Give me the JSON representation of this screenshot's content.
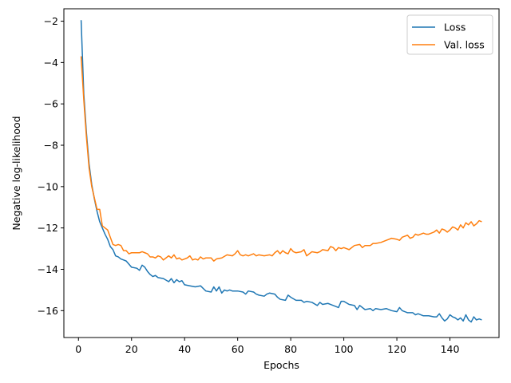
{
  "chart_data": {
    "type": "line",
    "title": "",
    "xlabel": "Epochs",
    "ylabel": "Negative log-likelihood",
    "xlim": [
      -5.5,
      158.5
    ],
    "ylim": [
      -17.3,
      -1.4
    ],
    "xticks": [
      0,
      20,
      40,
      60,
      80,
      100,
      120,
      140
    ],
    "yticks": [
      -16,
      -14,
      -12,
      -10,
      -8,
      -6,
      -4,
      -2
    ],
    "grid": false,
    "legend": "top-right",
    "series": [
      {
        "name": "Loss",
        "color": "#1f77b4",
        "points": [
          [
            1,
            -1.95
          ],
          [
            2,
            -5.5
          ],
          [
            3,
            -7.4
          ],
          [
            4,
            -8.9
          ],
          [
            5,
            -9.9
          ],
          [
            6,
            -10.6
          ],
          [
            7,
            -11.2
          ],
          [
            8,
            -11.7
          ],
          [
            9,
            -12.0
          ],
          [
            10,
            -12.3
          ],
          [
            11,
            -12.55
          ],
          [
            12,
            -12.9
          ],
          [
            13,
            -13.05
          ],
          [
            14,
            -13.35
          ],
          [
            15,
            -13.4
          ],
          [
            16,
            -13.5
          ],
          [
            17,
            -13.55
          ],
          [
            18,
            -13.6
          ],
          [
            19,
            -13.75
          ],
          [
            20,
            -13.9
          ],
          [
            22,
            -13.95
          ],
          [
            23,
            -14.05
          ],
          [
            24,
            -13.8
          ],
          [
            25,
            -13.9
          ],
          [
            26,
            -14.1
          ],
          [
            27,
            -14.25
          ],
          [
            28,
            -14.35
          ],
          [
            29,
            -14.3
          ],
          [
            30,
            -14.4
          ],
          [
            32,
            -14.45
          ],
          [
            34,
            -14.6
          ],
          [
            35,
            -14.45
          ],
          [
            36,
            -14.65
          ],
          [
            37,
            -14.5
          ],
          [
            38,
            -14.6
          ],
          [
            39,
            -14.55
          ],
          [
            40,
            -14.75
          ],
          [
            42,
            -14.8
          ],
          [
            44,
            -14.85
          ],
          [
            46,
            -14.8
          ],
          [
            48,
            -15.05
          ],
          [
            50,
            -15.1
          ],
          [
            51,
            -14.85
          ],
          [
            52,
            -15.05
          ],
          [
            53,
            -14.85
          ],
          [
            54,
            -15.15
          ],
          [
            55,
            -15.0
          ],
          [
            56,
            -15.05
          ],
          [
            57,
            -15.0
          ],
          [
            58,
            -15.05
          ],
          [
            60,
            -15.05
          ],
          [
            62,
            -15.1
          ],
          [
            63,
            -15.2
          ],
          [
            64,
            -15.05
          ],
          [
            66,
            -15.1
          ],
          [
            67,
            -15.2
          ],
          [
            68,
            -15.25
          ],
          [
            70,
            -15.3
          ],
          [
            71,
            -15.2
          ],
          [
            72,
            -15.15
          ],
          [
            74,
            -15.2
          ],
          [
            75,
            -15.35
          ],
          [
            76,
            -15.45
          ],
          [
            78,
            -15.5
          ],
          [
            79,
            -15.25
          ],
          [
            80,
            -15.35
          ],
          [
            82,
            -15.5
          ],
          [
            84,
            -15.5
          ],
          [
            85,
            -15.6
          ],
          [
            86,
            -15.55
          ],
          [
            88,
            -15.6
          ],
          [
            90,
            -15.75
          ],
          [
            91,
            -15.6
          ],
          [
            92,
            -15.7
          ],
          [
            94,
            -15.65
          ],
          [
            96,
            -15.75
          ],
          [
            98,
            -15.85
          ],
          [
            99,
            -15.55
          ],
          [
            100,
            -15.55
          ],
          [
            102,
            -15.7
          ],
          [
            104,
            -15.75
          ],
          [
            105,
            -15.95
          ],
          [
            106,
            -15.75
          ],
          [
            108,
            -15.95
          ],
          [
            110,
            -15.9
          ],
          [
            111,
            -16.0
          ],
          [
            112,
            -15.9
          ],
          [
            114,
            -15.95
          ],
          [
            116,
            -15.9
          ],
          [
            118,
            -16.0
          ],
          [
            120,
            -16.05
          ],
          [
            121,
            -15.85
          ],
          [
            122,
            -16.0
          ],
          [
            124,
            -16.1
          ],
          [
            126,
            -16.1
          ],
          [
            127,
            -16.2
          ],
          [
            128,
            -16.15
          ],
          [
            130,
            -16.25
          ],
          [
            132,
            -16.25
          ],
          [
            134,
            -16.3
          ],
          [
            135,
            -16.3
          ],
          [
            136,
            -16.15
          ],
          [
            137,
            -16.35
          ],
          [
            138,
            -16.5
          ],
          [
            139,
            -16.4
          ],
          [
            140,
            -16.2
          ],
          [
            141,
            -16.3
          ],
          [
            142,
            -16.35
          ],
          [
            143,
            -16.45
          ],
          [
            144,
            -16.35
          ],
          [
            145,
            -16.5
          ],
          [
            146,
            -16.2
          ],
          [
            147,
            -16.45
          ],
          [
            148,
            -16.55
          ],
          [
            149,
            -16.3
          ],
          [
            150,
            -16.45
          ],
          [
            151,
            -16.4
          ],
          [
            152,
            -16.45
          ]
        ]
      },
      {
        "name": "Val. loss",
        "color": "#ff7f0e",
        "points": [
          [
            1,
            -3.7
          ],
          [
            2,
            -5.8
          ],
          [
            3,
            -7.6
          ],
          [
            4,
            -9.1
          ],
          [
            5,
            -10.0
          ],
          [
            6,
            -10.55
          ],
          [
            7,
            -11.1
          ],
          [
            8,
            -11.1
          ],
          [
            9,
            -11.9
          ],
          [
            10,
            -12.0
          ],
          [
            11,
            -12.1
          ],
          [
            12,
            -12.45
          ],
          [
            13,
            -12.8
          ],
          [
            14,
            -12.85
          ],
          [
            15,
            -12.8
          ],
          [
            16,
            -12.85
          ],
          [
            17,
            -13.1
          ],
          [
            18,
            -13.1
          ],
          [
            19,
            -13.25
          ],
          [
            20,
            -13.2
          ],
          [
            22,
            -13.2
          ],
          [
            23,
            -13.2
          ],
          [
            24,
            -13.15
          ],
          [
            25,
            -13.2
          ],
          [
            26,
            -13.25
          ],
          [
            27,
            -13.4
          ],
          [
            28,
            -13.4
          ],
          [
            29,
            -13.45
          ],
          [
            30,
            -13.35
          ],
          [
            31,
            -13.4
          ],
          [
            32,
            -13.55
          ],
          [
            33,
            -13.45
          ],
          [
            34,
            -13.35
          ],
          [
            35,
            -13.45
          ],
          [
            36,
            -13.3
          ],
          [
            37,
            -13.5
          ],
          [
            38,
            -13.45
          ],
          [
            39,
            -13.55
          ],
          [
            40,
            -13.5
          ],
          [
            41,
            -13.45
          ],
          [
            42,
            -13.35
          ],
          [
            43,
            -13.55
          ],
          [
            44,
            -13.5
          ],
          [
            45,
            -13.55
          ],
          [
            46,
            -13.4
          ],
          [
            47,
            -13.5
          ],
          [
            48,
            -13.45
          ],
          [
            50,
            -13.45
          ],
          [
            51,
            -13.6
          ],
          [
            52,
            -13.5
          ],
          [
            54,
            -13.45
          ],
          [
            56,
            -13.3
          ],
          [
            58,
            -13.35
          ],
          [
            59,
            -13.25
          ],
          [
            60,
            -13.1
          ],
          [
            61,
            -13.3
          ],
          [
            62,
            -13.35
          ],
          [
            63,
            -13.3
          ],
          [
            64,
            -13.35
          ],
          [
            65,
            -13.3
          ],
          [
            66,
            -13.25
          ],
          [
            67,
            -13.35
          ],
          [
            68,
            -13.3
          ],
          [
            70,
            -13.35
          ],
          [
            72,
            -13.3
          ],
          [
            73,
            -13.35
          ],
          [
            74,
            -13.2
          ],
          [
            75,
            -13.1
          ],
          [
            76,
            -13.25
          ],
          [
            77,
            -13.1
          ],
          [
            78,
            -13.2
          ],
          [
            79,
            -13.25
          ],
          [
            80,
            -13.0
          ],
          [
            81,
            -13.15
          ],
          [
            82,
            -13.2
          ],
          [
            84,
            -13.15
          ],
          [
            85,
            -13.05
          ],
          [
            86,
            -13.35
          ],
          [
            88,
            -13.15
          ],
          [
            90,
            -13.2
          ],
          [
            91,
            -13.15
          ],
          [
            92,
            -13.05
          ],
          [
            94,
            -13.1
          ],
          [
            95,
            -12.9
          ],
          [
            96,
            -12.95
          ],
          [
            97,
            -13.1
          ],
          [
            98,
            -12.95
          ],
          [
            99,
            -13.0
          ],
          [
            100,
            -12.95
          ],
          [
            101,
            -13.0
          ],
          [
            102,
            -13.05
          ],
          [
            104,
            -12.85
          ],
          [
            106,
            -12.8
          ],
          [
            107,
            -12.95
          ],
          [
            108,
            -12.85
          ],
          [
            110,
            -12.85
          ],
          [
            111,
            -12.75
          ],
          [
            112,
            -12.75
          ],
          [
            114,
            -12.7
          ],
          [
            116,
            -12.6
          ],
          [
            117,
            -12.55
          ],
          [
            118,
            -12.5
          ],
          [
            120,
            -12.55
          ],
          [
            121,
            -12.6
          ],
          [
            122,
            -12.45
          ],
          [
            124,
            -12.35
          ],
          [
            125,
            -12.5
          ],
          [
            126,
            -12.45
          ],
          [
            127,
            -12.3
          ],
          [
            128,
            -12.35
          ],
          [
            130,
            -12.25
          ],
          [
            131,
            -12.3
          ],
          [
            132,
            -12.3
          ],
          [
            134,
            -12.2
          ],
          [
            135,
            -12.1
          ],
          [
            136,
            -12.25
          ],
          [
            137,
            -12.05
          ],
          [
            138,
            -12.1
          ],
          [
            139,
            -12.2
          ],
          [
            140,
            -12.1
          ],
          [
            141,
            -11.95
          ],
          [
            142,
            -12.0
          ],
          [
            143,
            -12.1
          ],
          [
            144,
            -11.85
          ],
          [
            145,
            -12.0
          ],
          [
            146,
            -11.75
          ],
          [
            147,
            -11.85
          ],
          [
            148,
            -11.7
          ],
          [
            149,
            -11.9
          ],
          [
            150,
            -11.8
          ],
          [
            151,
            -11.65
          ],
          [
            152,
            -11.7
          ]
        ]
      }
    ]
  }
}
